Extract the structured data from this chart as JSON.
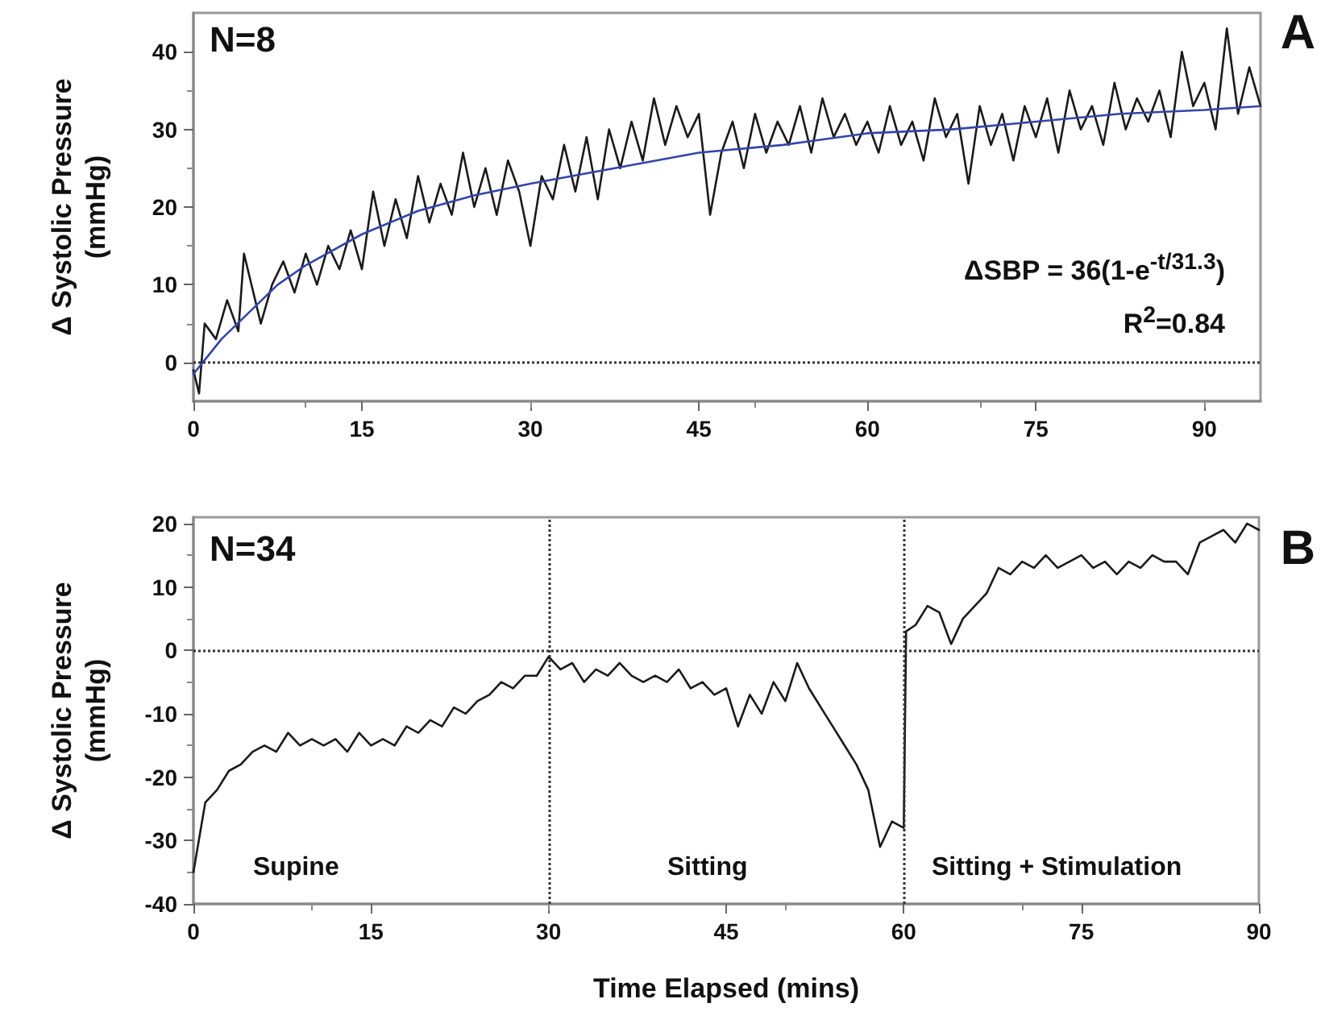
{
  "chart_data": [
    {
      "type": "line",
      "ylabel": "Δ Systolic Pressure (mmHg)",
      "xlim": [
        0,
        95
      ],
      "xticks": [
        0,
        15,
        30,
        45,
        60,
        75,
        90
      ],
      "ylim": [
        -5,
        45
      ],
      "yticks": [
        0,
        10,
        20,
        30,
        40
      ],
      "annotations": [
        "A",
        "N=8",
        "ΔSBP = 36(1-e$^{-t/31.3}$)",
        "R$^{2}$=0.84"
      ],
      "ref_lines": [
        {
          "axis": "y",
          "value": 0,
          "color": "#333333",
          "line_style": "dotted"
        }
      ],
      "series": [
        {
          "color": "#1a1a1a",
          "x": [
            0,
            0.5,
            1,
            2,
            3,
            4,
            4.5,
            5,
            6,
            7,
            8,
            9,
            10,
            11,
            12,
            13,
            14,
            15,
            16,
            17,
            18,
            19,
            20,
            21,
            22,
            23,
            24,
            25,
            26,
            27,
            28,
            29,
            30,
            31,
            32,
            33,
            34,
            35,
            36,
            37,
            38,
            39,
            40,
            41,
            42,
            43,
            44,
            45,
            46,
            47,
            48,
            49,
            50,
            51,
            52,
            53,
            54,
            55,
            56,
            57,
            58,
            59,
            60,
            61,
            62,
            63,
            64,
            65,
            66,
            67,
            68,
            69,
            70,
            71,
            72,
            73,
            74,
            75,
            76,
            77,
            78,
            79,
            80,
            81,
            82,
            83,
            84,
            85,
            86,
            87,
            88,
            89,
            90,
            91,
            92,
            93,
            94,
            95
          ],
          "values": [
            -1,
            -4,
            5,
            3,
            8,
            4,
            14,
            11,
            5,
            10,
            13,
            9,
            14,
            10,
            15,
            12,
            17,
            12,
            22,
            15,
            21,
            16,
            24,
            18,
            23,
            19,
            27,
            20,
            25,
            19,
            26,
            22,
            15,
            24,
            21,
            28,
            22,
            29,
            21,
            30,
            25,
            31,
            26,
            34,
            28,
            33,
            29,
            32,
            19,
            27,
            31,
            25,
            32,
            27,
            31,
            28,
            33,
            27,
            34,
            29,
            32,
            28,
            31,
            27,
            33,
            28,
            31,
            26,
            34,
            29,
            32,
            23,
            33,
            28,
            32,
            26,
            33,
            29,
            34,
            27,
            35,
            30,
            33,
            28,
            36,
            30,
            34,
            31,
            35,
            29,
            40,
            33,
            36,
            30,
            43,
            32,
            38,
            33
          ]
        },
        {
          "color": "#3344aa",
          "x": [
            0,
            2.5,
            5,
            7.5,
            10,
            15,
            20,
            25,
            30,
            37.5,
            45,
            52.5,
            60,
            67.5,
            75,
            82.5,
            90,
            95
          ],
          "values": [
            -1.5,
            3,
            6.5,
            10,
            12.5,
            16.5,
            19.5,
            21.5,
            23,
            25,
            27,
            28,
            29.5,
            30,
            31,
            32,
            32.5,
            33
          ]
        }
      ]
    },
    {
      "type": "line",
      "xlabel": "Time Elapsed (mins)",
      "ylabel": "Δ Systolic Pressure (mmHg)",
      "xlim": [
        0,
        90
      ],
      "xticks": [
        0,
        15,
        30,
        45,
        60,
        75,
        90
      ],
      "ylim": [
        -40,
        21
      ],
      "yticks": [
        -40,
        -30,
        -20,
        -10,
        0,
        10,
        20
      ],
      "annotations": [
        "B",
        "N=34",
        "Supine",
        "Sitting",
        "Sitting + Stimulation"
      ],
      "ref_lines": [
        {
          "axis": "y",
          "value": 0,
          "color": "#333333",
          "line_style": "dotted"
        },
        {
          "axis": "x",
          "value": 30,
          "color": "#333333",
          "line_style": "dotted"
        },
        {
          "axis": "x",
          "value": 60,
          "color": "#333333",
          "line_style": "dotted"
        }
      ],
      "series": [
        {
          "color": "#1a1a1a",
          "x": [
            0,
            1,
            2,
            3,
            4,
            5,
            6,
            7,
            8,
            9,
            10,
            11,
            12,
            13,
            14,
            15,
            16,
            17,
            18,
            19,
            20,
            21,
            22,
            23,
            24,
            25,
            26,
            27,
            28,
            29,
            30,
            31,
            32,
            33,
            34,
            35,
            36,
            37,
            38,
            39,
            40,
            41,
            42,
            43,
            44,
            45,
            46,
            47,
            48,
            49,
            50,
            51,
            52,
            53,
            54,
            55,
            56,
            57,
            58,
            59,
            60,
            60.2,
            61,
            62,
            63,
            64,
            65,
            66,
            67,
            68,
            69,
            70,
            71,
            72,
            73,
            74,
            75,
            76,
            77,
            78,
            79,
            80,
            81,
            82,
            83,
            84,
            85,
            86,
            87,
            88,
            89,
            90
          ],
          "values": [
            -35,
            -24,
            -22,
            -19,
            -18,
            -16,
            -15,
            -16,
            -13,
            -15,
            -14,
            -15,
            -14,
            -16,
            -13,
            -15,
            -14,
            -15,
            -12,
            -13,
            -11,
            -12,
            -9,
            -10,
            -8,
            -7,
            -5,
            -6,
            -4,
            -4,
            -1,
            -3,
            -2,
            -5,
            -3,
            -4,
            -2,
            -4,
            -5,
            -4,
            -5,
            -3,
            -6,
            -5,
            -7,
            -6,
            -12,
            -7,
            -10,
            -5,
            -8,
            -2,
            -6,
            -9,
            -12,
            -15,
            -18,
            -22,
            -31,
            -27,
            -28,
            3,
            4,
            7,
            6,
            1,
            5,
            7,
            9,
            13,
            12,
            14,
            13,
            15,
            13,
            14,
            15,
            13,
            14,
            12,
            14,
            13,
            15,
            14,
            14,
            12,
            17,
            18,
            19,
            17,
            20,
            19
          ]
        }
      ]
    }
  ]
}
